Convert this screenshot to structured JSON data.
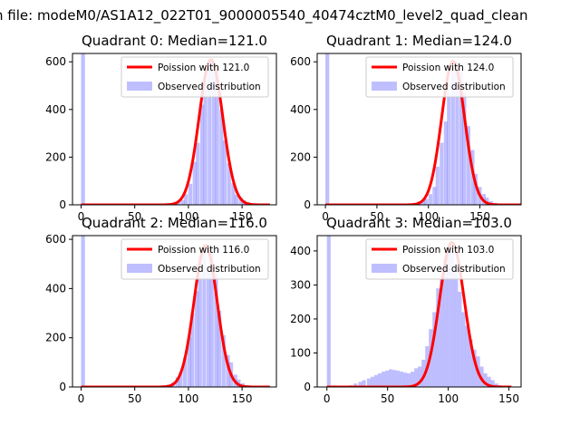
{
  "figure": {
    "suptitle": "n file: modeM0/AS1A12_022T01_9000005540_40474cztM0_level2_quad_clean"
  },
  "colors": {
    "hist": "#8080ff",
    "fit": "#ff0000",
    "axis": "#000000"
  },
  "chart_data": [
    {
      "type": "bar",
      "title": "Quadrant 0: Median=121.0",
      "legend": [
        "Poission with 121.0",
        "Observed distribution"
      ],
      "legend_position": "top-right",
      "grid": false,
      "xlim": [
        -8,
        182
      ],
      "ylim": [
        0,
        635
      ],
      "xticks": [
        0,
        50,
        100,
        150
      ],
      "yticks": [
        0,
        200,
        400,
        600
      ],
      "bin_width": 3.6,
      "bins": [
        [
          0,
          650
        ],
        [
          60,
          2
        ],
        [
          68,
          3
        ],
        [
          75,
          4
        ],
        [
          82,
          5
        ],
        [
          86,
          12
        ],
        [
          89,
          15
        ],
        [
          93,
          20
        ],
        [
          96,
          45
        ],
        [
          100,
          88
        ],
        [
          104,
          180
        ],
        [
          107,
          260
        ],
        [
          111,
          420
        ],
        [
          114,
          510
        ],
        [
          118,
          610
        ],
        [
          122,
          600
        ],
        [
          125,
          530
        ],
        [
          129,
          400
        ],
        [
          132,
          270
        ],
        [
          136,
          175
        ],
        [
          140,
          90
        ],
        [
          143,
          42
        ],
        [
          147,
          30
        ],
        [
          150,
          20
        ],
        [
          154,
          12
        ],
        [
          157,
          6
        ],
        [
          161,
          2
        ]
      ],
      "fit": {
        "mu": 121.0,
        "peak": 609,
        "x_range": [
          0,
          176
        ]
      }
    },
    {
      "type": "bar",
      "title": "Quadrant 1: Median=124.0",
      "legend": [
        "Poission with 124.0",
        "Observed distribution"
      ],
      "legend_position": "top-right",
      "grid": false,
      "xlim": [
        -8,
        190
      ],
      "ylim": [
        0,
        635
      ],
      "xticks": [
        0,
        50,
        100,
        150
      ],
      "yticks": [
        0,
        200,
        400,
        600
      ],
      "bin_width": 3.7,
      "bins": [
        [
          0,
          650
        ],
        [
          80,
          3
        ],
        [
          85,
          8
        ],
        [
          89,
          15
        ],
        [
          93,
          20
        ],
        [
          96,
          25
        ],
        [
          100,
          45
        ],
        [
          104,
          75
        ],
        [
          107,
          160
        ],
        [
          111,
          260
        ],
        [
          115,
          350
        ],
        [
          118,
          470
        ],
        [
          122,
          580
        ],
        [
          126,
          600
        ],
        [
          130,
          560
        ],
        [
          133,
          470
        ],
        [
          137,
          330
        ],
        [
          141,
          230
        ],
        [
          144,
          130
        ],
        [
          148,
          75
        ],
        [
          152,
          45
        ],
        [
          155,
          30
        ],
        [
          159,
          15
        ],
        [
          163,
          8
        ],
        [
          167,
          3
        ]
      ],
      "fit": {
        "mu": 124.0,
        "peak": 602,
        "x_range": [
          0,
          190
        ]
      }
    },
    {
      "type": "bar",
      "title": "Quadrant 2: Median=116.0",
      "legend": [
        "Poission with 116.0",
        "Observed distribution"
      ],
      "legend_position": "top-right",
      "grid": false,
      "xlim": [
        -8,
        182
      ],
      "ylim": [
        0,
        615
      ],
      "xticks": [
        0,
        50,
        100,
        150
      ],
      "yticks": [
        0,
        200,
        400,
        600
      ],
      "bin_width": 3.6,
      "bins": [
        [
          0,
          650
        ],
        [
          72,
          3
        ],
        [
          76,
          6
        ],
        [
          80,
          10
        ],
        [
          84,
          18
        ],
        [
          88,
          40
        ],
        [
          91,
          60
        ],
        [
          95,
          120
        ],
        [
          99,
          200
        ],
        [
          102,
          300
        ],
        [
          106,
          390
        ],
        [
          109,
          460
        ],
        [
          113,
          560
        ],
        [
          117,
          470
        ],
        [
          120,
          560
        ],
        [
          124,
          460
        ],
        [
          127,
          310
        ],
        [
          131,
          210
        ],
        [
          135,
          130
        ],
        [
          138,
          100
        ],
        [
          142,
          50
        ],
        [
          145,
          30
        ],
        [
          149,
          15
        ],
        [
          153,
          8
        ],
        [
          156,
          4
        ]
      ],
      "fit": {
        "mu": 116.0,
        "peak": 575,
        "x_range": [
          0,
          176
        ]
      }
    },
    {
      "type": "bar",
      "title": "Quadrant 3: Median=103.0",
      "legend": [
        "Poission with 103.0",
        "Observed distribution"
      ],
      "legend_position": "top-right",
      "grid": false,
      "xlim": [
        -8,
        160
      ],
      "ylim": [
        0,
        445
      ],
      "xticks": [
        0,
        50,
        100,
        150
      ],
      "yticks": [
        0,
        100,
        200,
        300,
        400
      ],
      "bin_width": 3.1,
      "bins": [
        [
          0,
          460
        ],
        [
          15,
          3
        ],
        [
          18,
          5
        ],
        [
          22,
          10
        ],
        [
          26,
          15
        ],
        [
          29,
          20
        ],
        [
          33,
          25
        ],
        [
          36,
          30
        ],
        [
          39,
          35
        ],
        [
          42,
          40
        ],
        [
          45,
          45
        ],
        [
          48,
          48
        ],
        [
          51,
          52
        ],
        [
          54,
          50
        ],
        [
          57,
          48
        ],
        [
          60,
          45
        ],
        [
          63,
          42
        ],
        [
          66,
          40
        ],
        [
          69,
          45
        ],
        [
          72,
          55
        ],
        [
          75,
          60
        ],
        [
          78,
          80
        ],
        [
          81,
          120
        ],
        [
          84,
          170
        ],
        [
          87,
          220
        ],
        [
          90,
          290
        ],
        [
          93,
          330
        ],
        [
          96,
          380
        ],
        [
          99,
          400
        ],
        [
          102,
          400
        ],
        [
          105,
          360
        ],
        [
          108,
          280
        ],
        [
          111,
          220
        ],
        [
          114,
          180
        ],
        [
          117,
          140
        ],
        [
          120,
          110
        ],
        [
          123,
          90
        ],
        [
          126,
          60
        ],
        [
          129,
          40
        ],
        [
          132,
          30
        ],
        [
          135,
          20
        ],
        [
          138,
          10
        ],
        [
          141,
          5
        ],
        [
          144,
          3
        ]
      ],
      "fit": {
        "mu": 103.0,
        "peak": 425,
        "x_range": [
          0,
          152
        ]
      }
    }
  ]
}
